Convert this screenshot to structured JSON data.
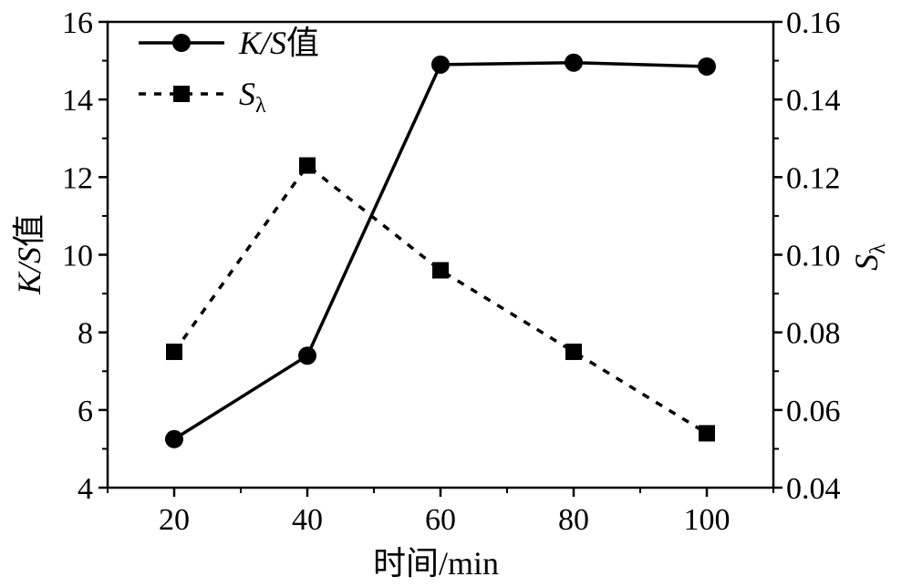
{
  "chart_data": {
    "type": "line",
    "x": [
      20,
      40,
      60,
      80,
      100
    ],
    "x_ticks": [
      "20",
      "40",
      "60",
      "80",
      "100"
    ],
    "xlim": [
      10,
      110
    ],
    "xlabel": "时间/min",
    "ylabel_left": {
      "italic": "K/S",
      "suffix": "值"
    },
    "ylabel_right": {
      "main": "S",
      "sub": "λ"
    },
    "y_left_lim": [
      4,
      16
    ],
    "y_left_ticks": [
      "4",
      "6",
      "8",
      "10",
      "12",
      "14",
      "16"
    ],
    "y_right_lim": [
      0.04,
      0.16
    ],
    "y_right_ticks": [
      "0.04",
      "0.06",
      "0.08",
      "0.10",
      "0.12",
      "0.14",
      "0.16"
    ],
    "grid": false,
    "legend_position": "top-left",
    "series": [
      {
        "name": {
          "italic": "K/S",
          "suffix": "值"
        },
        "axis": "left",
        "marker": "circle",
        "line_style": "solid",
        "color": "#000000",
        "values": [
          5.25,
          7.4,
          14.9,
          14.95,
          14.85
        ]
      },
      {
        "name": {
          "main": "S",
          "sub": "λ"
        },
        "axis": "right",
        "marker": "square",
        "line_style": "dotted",
        "color": "#000000",
        "values": [
          0.075,
          0.123,
          0.096,
          0.075,
          0.054
        ]
      }
    ]
  }
}
